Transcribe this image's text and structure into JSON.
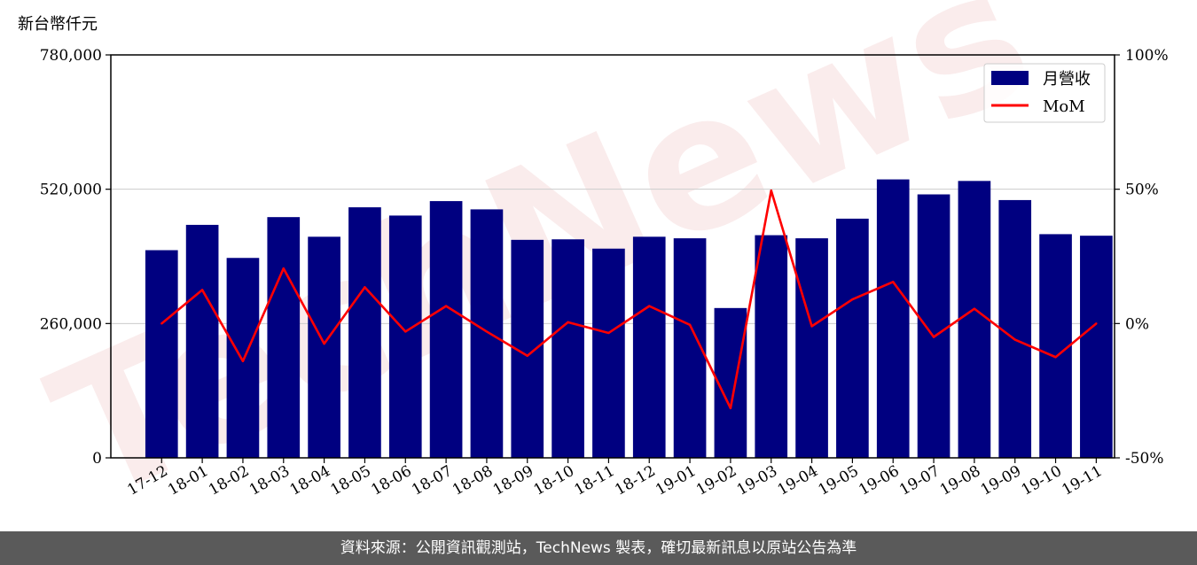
{
  "watermark": "TechNews",
  "footer": {
    "text": "資料來源：公開資訊觀測站，TechNews 製表，確切最新訊息以原站公告為準"
  },
  "chart_data": {
    "type": "bar",
    "unit_label": "新台幣仟元",
    "categories": [
      "17-12",
      "18-01",
      "18-02",
      "18-03",
      "18-04",
      "18-05",
      "18-06",
      "18-07",
      "18-08",
      "18-09",
      "18-10",
      "18-11",
      "18-12",
      "19-01",
      "19-02",
      "19-03",
      "19-04",
      "19-05",
      "19-06",
      "19-07",
      "19-08",
      "19-09",
      "19-10",
      "19-11"
    ],
    "series": [
      {
        "name": "月營收",
        "axis": "left",
        "type": "bar",
        "color": "#000080",
        "values": [
          402000,
          451000,
          387000,
          466000,
          428000,
          485000,
          469000,
          497000,
          481000,
          422000,
          423000,
          405000,
          428000,
          425000,
          290000,
          431000,
          425000,
          463000,
          539000,
          510000,
          536000,
          499000,
          433000,
          430000
        ]
      },
      {
        "name": "MoM",
        "axis": "right",
        "type": "line",
        "color": "#ff0000",
        "unit": "%",
        "values": [
          0,
          12.5,
          -14,
          20.5,
          -7.5,
          13.5,
          -3,
          6.5,
          -3,
          -12,
          0.5,
          -3.5,
          6.5,
          -0.5,
          -31.5,
          49.5,
          -1,
          9,
          15.5,
          -5,
          5.5,
          -6,
          -12.5,
          0
        ]
      }
    ],
    "y_left": {
      "min": 0,
      "max": 780000,
      "ticks": [
        0,
        260000,
        520000,
        780000
      ],
      "tick_labels": [
        "0",
        "260,000",
        "520,000",
        "780,000"
      ]
    },
    "y_right": {
      "min": -50,
      "max": 100,
      "ticks": [
        -50,
        0,
        50,
        100
      ],
      "tick_labels": [
        "-50%",
        "0%",
        "50%",
        "100%"
      ]
    },
    "grid": "horizontal",
    "legend": {
      "position": "top-right",
      "entries": [
        "月營收",
        "MoM"
      ]
    }
  }
}
